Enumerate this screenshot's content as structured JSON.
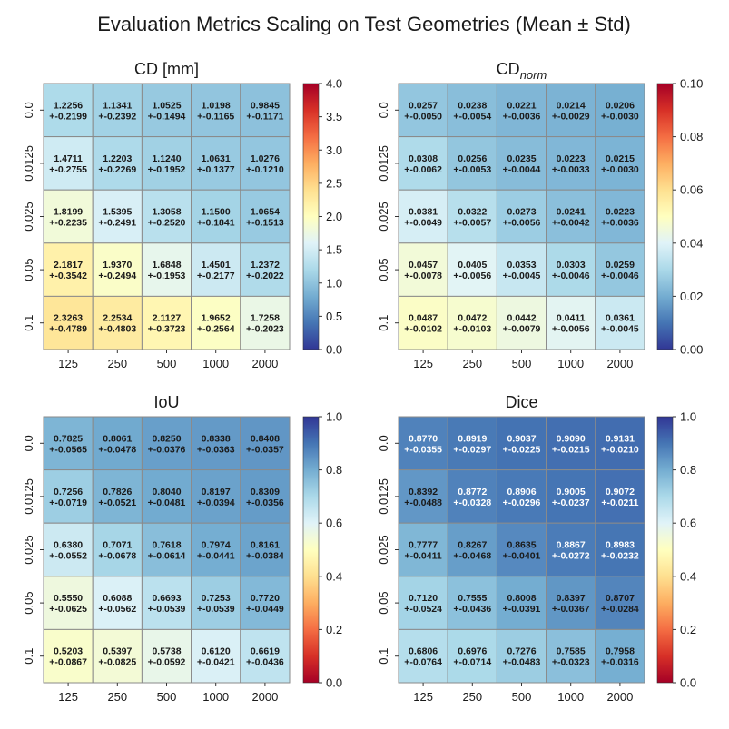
{
  "figure_title": "Evaluation Metrics Scaling on Test Geometries (Mean ± Std)",
  "chart_data": [
    {
      "type": "heatmap",
      "title": "CD [mm]",
      "xlabel": "",
      "ylabel": "",
      "x_categories": [
        "125",
        "250",
        "500",
        "1000",
        "2000"
      ],
      "y_categories": [
        "0.0",
        "0.0125",
        "0.025",
        "0.05",
        "0.1"
      ],
      "colormap": "RdYlBu_r",
      "vmin": 0.0,
      "vmax": 4.0,
      "colorbar_ticks": [
        "0.0",
        "0.5",
        "1.0",
        "1.5",
        "2.0",
        "2.5",
        "3.0",
        "3.5",
        "4.0"
      ],
      "mean": [
        [
          1.2256,
          1.1341,
          1.0525,
          1.0198,
          0.9845
        ],
        [
          1.4711,
          1.2203,
          1.124,
          1.0631,
          1.0276
        ],
        [
          1.8199,
          1.5395,
          1.3058,
          1.15,
          1.0654
        ],
        [
          2.1817,
          1.937,
          1.6848,
          1.4501,
          1.2372
        ],
        [
          2.3263,
          2.2534,
          2.1127,
          1.9652,
          1.7258
        ]
      ],
      "std_labels": [
        [
          "+-0.2199",
          "+-0.2392",
          "+-0.1494",
          "+-0.1165",
          "+-0.1171"
        ],
        [
          "+-0.2755",
          "+-0.2269",
          "+-0.1952",
          "+-0.1377",
          "+-0.1210"
        ],
        [
          "+-0.2235",
          "+-0.2491",
          "+-0.2520",
          "+-0.1841",
          "+-0.1513"
        ],
        [
          "+-0.3542",
          "+-0.2494",
          "+-0.1953",
          "+-0.2177",
          "+-0.2022"
        ],
        [
          "+-0.4789",
          "+-0.4803",
          "+-0.3723",
          "+-0.2564",
          "+-0.2023"
        ]
      ],
      "mean_labels": [
        [
          "1.2256",
          "1.1341",
          "1.0525",
          "1.0198",
          "0.9845"
        ],
        [
          "1.4711",
          "1.2203",
          "1.1240",
          "1.0631",
          "1.0276"
        ],
        [
          "1.8199",
          "1.5395",
          "1.3058",
          "1.1500",
          "1.0654"
        ],
        [
          "2.1817",
          "1.9370",
          "1.6848",
          "1.4501",
          "1.2372"
        ],
        [
          "2.3263",
          "2.2534",
          "2.1127",
          "1.9652",
          "1.7258"
        ]
      ]
    },
    {
      "type": "heatmap",
      "title": "CD",
      "title_subscript": "norm",
      "xlabel": "",
      "ylabel": "",
      "x_categories": [
        "125",
        "250",
        "500",
        "1000",
        "2000"
      ],
      "y_categories": [
        "0.0",
        "0.0125",
        "0.025",
        "0.05",
        "0.1"
      ],
      "colormap": "RdYlBu_r",
      "vmin": 0.0,
      "vmax": 0.1,
      "colorbar_ticks": [
        "0.00",
        "0.02",
        "0.04",
        "0.06",
        "0.08",
        "0.10"
      ],
      "mean": [
        [
          0.0257,
          0.0238,
          0.0221,
          0.0214,
          0.0206
        ],
        [
          0.0308,
          0.0256,
          0.0235,
          0.0223,
          0.0215
        ],
        [
          0.0381,
          0.0322,
          0.0273,
          0.0241,
          0.0223
        ],
        [
          0.0457,
          0.0405,
          0.0353,
          0.0303,
          0.0259
        ],
        [
          0.0487,
          0.0472,
          0.0442,
          0.0411,
          0.0361
        ]
      ],
      "std_labels": [
        [
          "+-0.0050",
          "+-0.0054",
          "+-0.0036",
          "+-0.0029",
          "+-0.0030"
        ],
        [
          "+-0.0062",
          "+-0.0053",
          "+-0.0044",
          "+-0.0033",
          "+-0.0030"
        ],
        [
          "+-0.0049",
          "+-0.0057",
          "+-0.0056",
          "+-0.0042",
          "+-0.0036"
        ],
        [
          "+-0.0078",
          "+-0.0056",
          "+-0.0045",
          "+-0.0046",
          "+-0.0046"
        ],
        [
          "+-0.0102",
          "+-0.0103",
          "+-0.0079",
          "+-0.0056",
          "+-0.0045"
        ]
      ],
      "mean_labels": [
        [
          "0.0257",
          "0.0238",
          "0.0221",
          "0.0214",
          "0.0206"
        ],
        [
          "0.0308",
          "0.0256",
          "0.0235",
          "0.0223",
          "0.0215"
        ],
        [
          "0.0381",
          "0.0322",
          "0.0273",
          "0.0241",
          "0.0223"
        ],
        [
          "0.0457",
          "0.0405",
          "0.0353",
          "0.0303",
          "0.0259"
        ],
        [
          "0.0487",
          "0.0472",
          "0.0442",
          "0.0411",
          "0.0361"
        ]
      ]
    },
    {
      "type": "heatmap",
      "title": "IoU",
      "xlabel": "",
      "ylabel": "",
      "x_categories": [
        "125",
        "250",
        "500",
        "1000",
        "2000"
      ],
      "y_categories": [
        "0.0",
        "0.0125",
        "0.025",
        "0.05",
        "0.1"
      ],
      "colormap": "RdYlBu",
      "vmin": 0.0,
      "vmax": 1.0,
      "colorbar_ticks": [
        "0.0",
        "0.2",
        "0.4",
        "0.6",
        "0.8",
        "1.0"
      ],
      "mean": [
        [
          0.7825,
          0.8061,
          0.825,
          0.8338,
          0.8408
        ],
        [
          0.7256,
          0.7826,
          0.804,
          0.8197,
          0.8309
        ],
        [
          0.638,
          0.7071,
          0.7618,
          0.7974,
          0.8161
        ],
        [
          0.555,
          0.6088,
          0.6693,
          0.7253,
          0.772
        ],
        [
          0.5203,
          0.5397,
          0.5738,
          0.612,
          0.6619
        ]
      ],
      "std_labels": [
        [
          "+-0.0565",
          "+-0.0478",
          "+-0.0376",
          "+-0.0363",
          "+-0.0357"
        ],
        [
          "+-0.0719",
          "+-0.0521",
          "+-0.0481",
          "+-0.0394",
          "+-0.0356"
        ],
        [
          "+-0.0552",
          "+-0.0678",
          "+-0.0614",
          "+-0.0441",
          "+-0.0384"
        ],
        [
          "+-0.0625",
          "+-0.0562",
          "+-0.0539",
          "+-0.0539",
          "+-0.0449"
        ],
        [
          "+-0.0867",
          "+-0.0825",
          "+-0.0592",
          "+-0.0421",
          "+-0.0436"
        ]
      ],
      "mean_labels": [
        [
          "0.7825",
          "0.8061",
          "0.8250",
          "0.8338",
          "0.8408"
        ],
        [
          "0.7256",
          "0.7826",
          "0.8040",
          "0.8197",
          "0.8309"
        ],
        [
          "0.6380",
          "0.7071",
          "0.7618",
          "0.7974",
          "0.8161"
        ],
        [
          "0.5550",
          "0.6088",
          "0.6693",
          "0.7253",
          "0.7720"
        ],
        [
          "0.5203",
          "0.5397",
          "0.5738",
          "0.6120",
          "0.6619"
        ]
      ]
    },
    {
      "type": "heatmap",
      "title": "Dice",
      "xlabel": "",
      "ylabel": "",
      "x_categories": [
        "125",
        "250",
        "500",
        "1000",
        "2000"
      ],
      "y_categories": [
        "0.0",
        "0.0125",
        "0.025",
        "0.05",
        "0.1"
      ],
      "colormap": "RdYlBu",
      "vmin": 0.0,
      "vmax": 1.0,
      "colorbar_ticks": [
        "0.0",
        "0.2",
        "0.4",
        "0.6",
        "0.8",
        "1.0"
      ],
      "mean": [
        [
          0.877,
          0.8919,
          0.9037,
          0.909,
          0.9131
        ],
        [
          0.8392,
          0.8772,
          0.8906,
          0.9005,
          0.9072
        ],
        [
          0.7777,
          0.8267,
          0.8635,
          0.8867,
          0.8983
        ],
        [
          0.712,
          0.7555,
          0.8008,
          0.8397,
          0.8707
        ],
        [
          0.6806,
          0.6976,
          0.7276,
          0.7585,
          0.7958
        ]
      ],
      "std_labels": [
        [
          "+-0.0355",
          "+-0.0297",
          "+-0.0225",
          "+-0.0215",
          "+-0.0210"
        ],
        [
          "+-0.0488",
          "+-0.0328",
          "+-0.0296",
          "+-0.0237",
          "+-0.0211"
        ],
        [
          "+-0.0411",
          "+-0.0468",
          "+-0.0401",
          "+-0.0272",
          "+-0.0232"
        ],
        [
          "+-0.0524",
          "+-0.0436",
          "+-0.0391",
          "+-0.0367",
          "+-0.0284"
        ],
        [
          "+-0.0764",
          "+-0.0714",
          "+-0.0483",
          "+-0.0323",
          "+-0.0316"
        ]
      ],
      "mean_labels": [
        [
          "0.8770",
          "0.8919",
          "0.9037",
          "0.9090",
          "0.9131"
        ],
        [
          "0.8392",
          "0.8772",
          "0.8906",
          "0.9005",
          "0.9072"
        ],
        [
          "0.7777",
          "0.8267",
          "0.8635",
          "0.8867",
          "0.8983"
        ],
        [
          "0.7120",
          "0.7555",
          "0.8008",
          "0.8397",
          "0.8707"
        ],
        [
          "0.6806",
          "0.6976",
          "0.7276",
          "0.7585",
          "0.7958"
        ]
      ]
    }
  ]
}
